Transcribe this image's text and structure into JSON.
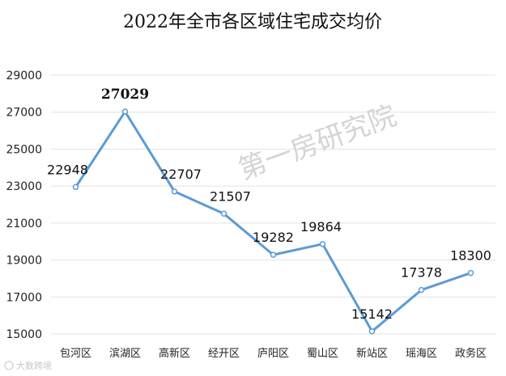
{
  "watermark": "第一房研究院",
  "footer_mark": "大数跨境",
  "colors": {
    "line": "#5B9BD5",
    "highlight": "#E02020",
    "grid": "#e3e3e3"
  },
  "chart_data": {
    "type": "line",
    "title": "2022年全市各区域住宅成交均价",
    "categories": [
      "包河区",
      "滨湖区",
      "高新区",
      "经开区",
      "庐阳区",
      "蜀山区",
      "新站区",
      "瑶海区",
      "政务区"
    ],
    "series": [
      {
        "values": [
          22948,
          27029,
          22707,
          21507,
          19282,
          19864,
          15142,
          17378,
          18300
        ]
      }
    ],
    "data_labels": [
      "22948",
      "27029",
      "22707",
      "21507",
      "19282",
      "19864",
      "15142",
      "17378",
      "18300"
    ],
    "highlight_index": 1,
    "y_ticks": [
      "15000",
      "17000",
      "19000",
      "21000",
      "23000",
      "25000",
      "27000",
      "29000"
    ],
    "ylim": [
      15000,
      29000
    ],
    "grid": true,
    "legend": "none"
  }
}
